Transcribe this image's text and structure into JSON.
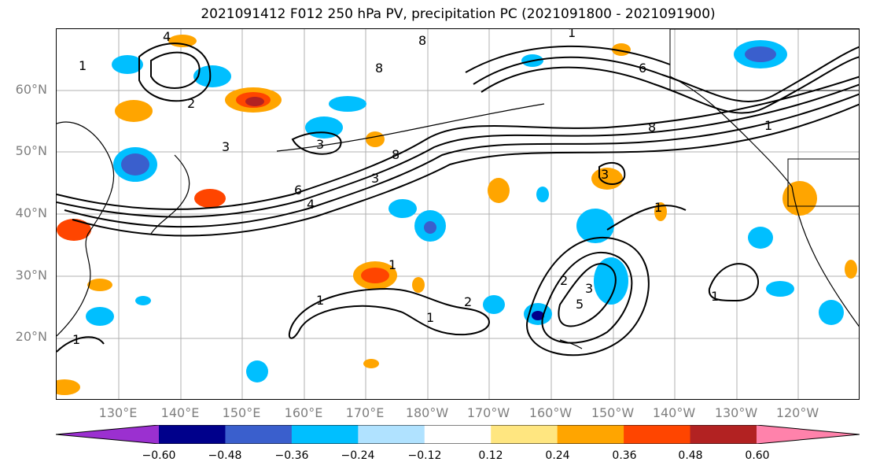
{
  "title": "2021091412 F012 250 hPa PV, precipitation PC (2021091800 - 2021091900)",
  "lat_labels": [
    "60°N",
    "50°N",
    "40°N",
    "30°N",
    "20°N"
  ],
  "lon_labels": [
    "130°E",
    "140°E",
    "150°E",
    "160°E",
    "170°E",
    "180°W",
    "170°W",
    "160°W",
    "150°W",
    "140°W",
    "130°W",
    "120°W"
  ],
  "colorbar": {
    "ticks": [
      "−0.60",
      "−0.48",
      "−0.36",
      "−0.24",
      "−0.12",
      "0.12",
      "0.24",
      "0.36",
      "0.48",
      "0.60"
    ],
    "colors": [
      "#9b30d0",
      "#00008b",
      "#3a5fcd",
      "#00bfff",
      "#b0e2ff",
      "#ffffff",
      "#ffe680",
      "#ffa500",
      "#ff4500",
      "#b22222",
      "#ff82ab"
    ]
  },
  "pv_contour_labels": [
    "1",
    "2",
    "3",
    "4",
    "6",
    "8"
  ],
  "map_extent": {
    "lon": [
      "120°E",
      "110°W"
    ],
    "lat": [
      "10°N",
      "70°N"
    ]
  }
}
